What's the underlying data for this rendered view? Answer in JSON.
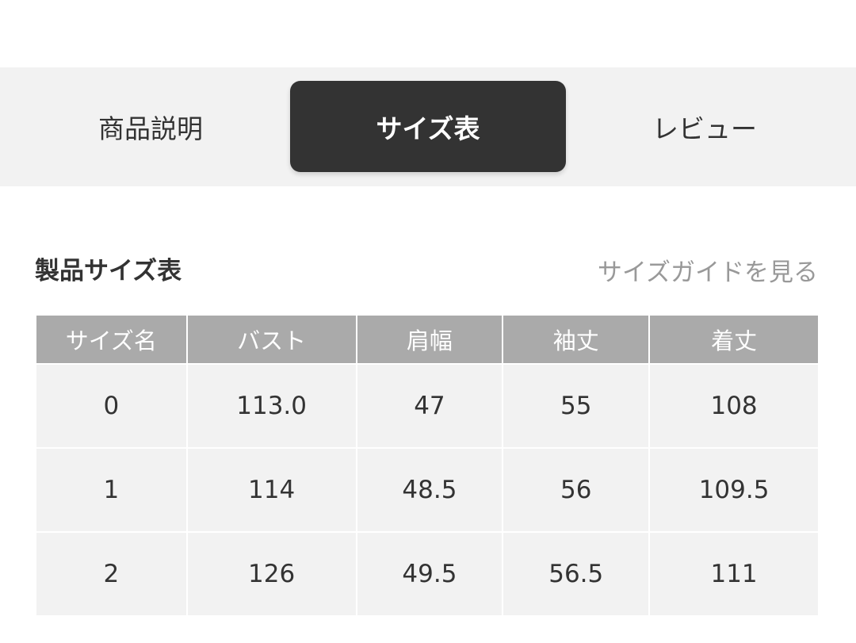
{
  "tabs": [
    {
      "label": "商品説明",
      "active": false
    },
    {
      "label": "サイズ表",
      "active": true
    },
    {
      "label": "レビュー",
      "active": false
    }
  ],
  "section": {
    "title": "製品サイズ表",
    "guide_link": "サイズガイドを見る"
  },
  "table": {
    "headers": [
      "サイズ名",
      "バスト",
      "肩幅",
      "袖丈",
      "着丈"
    ],
    "rows": [
      [
        "0",
        "113.0",
        "47",
        "55",
        "108"
      ],
      [
        "1",
        "114",
        "48.5",
        "56",
        "109.5"
      ],
      [
        "2",
        "126",
        "49.5",
        "56.5",
        "111"
      ]
    ]
  }
}
